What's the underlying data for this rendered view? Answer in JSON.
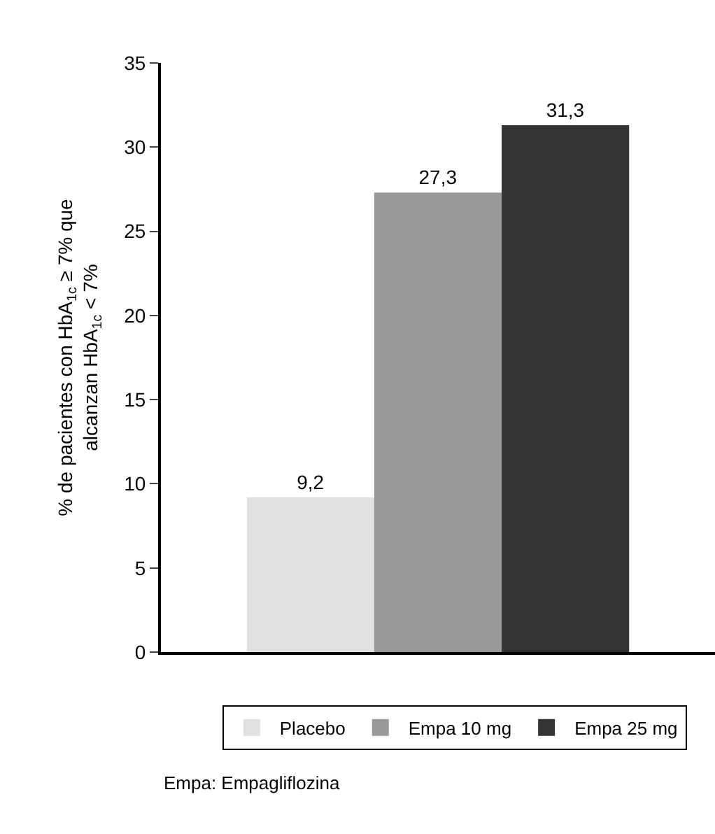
{
  "chart_data": {
    "type": "bar",
    "ylabel": "% de pacientes con HbA$_{1c}$ ≥ 7% que\nalcanzan HbA$_{1c}$ < 7%",
    "categories": [
      null
    ],
    "series": [
      {
        "name": "Placebo",
        "color": "#e0e0e0",
        "values": [
          9.2
        ],
        "value_labels": [
          "9,2"
        ]
      },
      {
        "name": "Empa 10 mg",
        "color": "#999999",
        "values": [
          27.3
        ],
        "value_labels": [
          "27,3"
        ]
      },
      {
        "name": "Empa 25 mg",
        "color": "#333333",
        "values": [
          31.3
        ],
        "value_labels": [
          "31,3"
        ]
      }
    ],
    "ylim": [
      0,
      35
    ],
    "yticks": [
      0,
      5,
      10,
      15,
      20,
      25,
      30,
      35
    ],
    "legend": "bottom",
    "annotations": [
      "Empa: Empagliflozina"
    ]
  }
}
